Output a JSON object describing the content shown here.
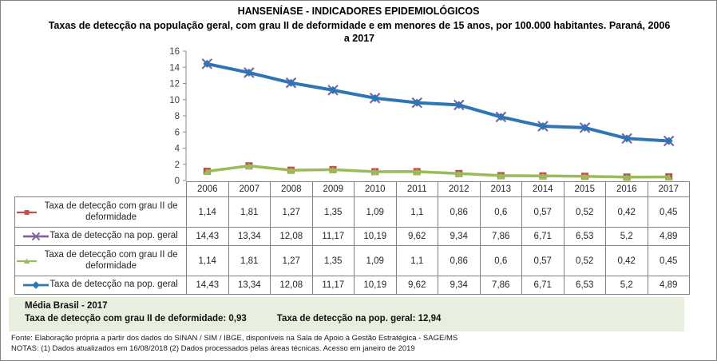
{
  "title": "HANSENÍASE - INDICADORES EPIDEMIOLÓGICOS",
  "subtitle": "Taxas de detecção na população geral, com grau II de deformidade e em menores de 15 anos, por 100.000 habitantes. Paraná, 2006 a 2017",
  "chart_data": {
    "type": "line",
    "categories": [
      "2006",
      "2007",
      "2008",
      "2009",
      "2010",
      "2011",
      "2012",
      "2013",
      "2014",
      "2015",
      "2016",
      "2017"
    ],
    "series": [
      {
        "name": "Taxa de detecção com grau II de deformidade",
        "marker": "square",
        "color": "#C0504D",
        "values": [
          1.14,
          1.81,
          1.27,
          1.35,
          1.09,
          1.1,
          0.86,
          0.6,
          0.57,
          0.52,
          0.42,
          0.45
        ],
        "labels": [
          "1,14",
          "1,81",
          "1,27",
          "1,35",
          "1,09",
          "1,1",
          "0,86",
          "0,6",
          "0,57",
          "0,52",
          "0,42",
          "0,45"
        ]
      },
      {
        "name": "Taxa de detecção na pop. geral",
        "marker": "x",
        "color": "#8064A2",
        "values": [
          14.43,
          13.34,
          12.08,
          11.17,
          10.19,
          9.62,
          9.34,
          7.86,
          6.71,
          6.53,
          5.2,
          4.89
        ],
        "labels": [
          "14,43",
          "13,34",
          "12,08",
          "11,17",
          "10,19",
          "9,62",
          "9,34",
          "7,86",
          "6,71",
          "6,53",
          "5,2",
          "4,89"
        ]
      },
      {
        "name": "Taxa de detecção com grau II de deformidade",
        "marker": "triangle",
        "color": "#9BBB59",
        "values": [
          1.14,
          1.81,
          1.27,
          1.35,
          1.09,
          1.1,
          0.86,
          0.6,
          0.57,
          0.52,
          0.42,
          0.45
        ],
        "labels": [
          "1,14",
          "1,81",
          "1,27",
          "1,35",
          "1,09",
          "1,1",
          "0,86",
          "0,6",
          "0,57",
          "0,52",
          "0,42",
          "0,45"
        ]
      },
      {
        "name": "Taxa de detecção na pop. geral",
        "marker": "diamond",
        "color": "#2E75B6",
        "values": [
          14.43,
          13.34,
          12.08,
          11.17,
          10.19,
          9.62,
          9.34,
          7.86,
          6.71,
          6.53,
          5.2,
          4.89
        ],
        "labels": [
          "14,43",
          "13,34",
          "12,08",
          "11,17",
          "10,19",
          "9,62",
          "9,34",
          "7,86",
          "6,71",
          "6,53",
          "5,2",
          "4,89"
        ]
      }
    ],
    "ylim": [
      0,
      16
    ],
    "yticks": [
      0,
      2,
      4,
      6,
      8,
      10,
      12,
      14,
      16
    ],
    "grid": false,
    "legend_position": "data-table-left",
    "axis_color": "#898989",
    "tick_label_color": "#404040"
  },
  "summary_box": {
    "title": "Média Brasil - 2017",
    "item1": "Taxa de detecção com grau II de deformidade: 0,93",
    "item2": "Taxa de detecção na pop. geral: 12,94"
  },
  "footnotes": {
    "fonte": "Fonte:  Elaboração própria a partir dos dados do  SINAN / SIM / IBGE, disponíveis na Sala de Apoio à Gestão Estratégica - SAGE/MS",
    "notas": "NOTAS: (1) Dados atualizados em 16/08/2018 (2) Dados processados pelas áreas técnicas. Acesso em janeiro de 2019"
  }
}
